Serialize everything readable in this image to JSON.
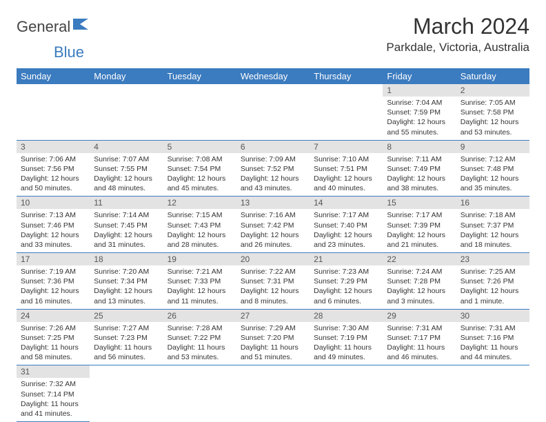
{
  "logo": {
    "text1": "General",
    "text2": "Blue"
  },
  "title": "March 2024",
  "location": "Parkdale, Victoria, Australia",
  "colors": {
    "header_bg": "#3b7bbf",
    "header_fg": "#ffffff",
    "daynum_bg": "#e3e3e3",
    "row_border": "#3b7bbf",
    "logo_accent": "#3b7bbf"
  },
  "weekdays": [
    "Sunday",
    "Monday",
    "Tuesday",
    "Wednesday",
    "Thursday",
    "Friday",
    "Saturday"
  ],
  "weeks": [
    [
      null,
      null,
      null,
      null,
      null,
      {
        "n": "1",
        "sr": "7:04 AM",
        "ss": "7:59 PM",
        "dl": "12 hours and 55 minutes."
      },
      {
        "n": "2",
        "sr": "7:05 AM",
        "ss": "7:58 PM",
        "dl": "12 hours and 53 minutes."
      }
    ],
    [
      {
        "n": "3",
        "sr": "7:06 AM",
        "ss": "7:56 PM",
        "dl": "12 hours and 50 minutes."
      },
      {
        "n": "4",
        "sr": "7:07 AM",
        "ss": "7:55 PM",
        "dl": "12 hours and 48 minutes."
      },
      {
        "n": "5",
        "sr": "7:08 AM",
        "ss": "7:54 PM",
        "dl": "12 hours and 45 minutes."
      },
      {
        "n": "6",
        "sr": "7:09 AM",
        "ss": "7:52 PM",
        "dl": "12 hours and 43 minutes."
      },
      {
        "n": "7",
        "sr": "7:10 AM",
        "ss": "7:51 PM",
        "dl": "12 hours and 40 minutes."
      },
      {
        "n": "8",
        "sr": "7:11 AM",
        "ss": "7:49 PM",
        "dl": "12 hours and 38 minutes."
      },
      {
        "n": "9",
        "sr": "7:12 AM",
        "ss": "7:48 PM",
        "dl": "12 hours and 35 minutes."
      }
    ],
    [
      {
        "n": "10",
        "sr": "7:13 AM",
        "ss": "7:46 PM",
        "dl": "12 hours and 33 minutes."
      },
      {
        "n": "11",
        "sr": "7:14 AM",
        "ss": "7:45 PM",
        "dl": "12 hours and 31 minutes."
      },
      {
        "n": "12",
        "sr": "7:15 AM",
        "ss": "7:43 PM",
        "dl": "12 hours and 28 minutes."
      },
      {
        "n": "13",
        "sr": "7:16 AM",
        "ss": "7:42 PM",
        "dl": "12 hours and 26 minutes."
      },
      {
        "n": "14",
        "sr": "7:17 AM",
        "ss": "7:40 PM",
        "dl": "12 hours and 23 minutes."
      },
      {
        "n": "15",
        "sr": "7:17 AM",
        "ss": "7:39 PM",
        "dl": "12 hours and 21 minutes."
      },
      {
        "n": "16",
        "sr": "7:18 AM",
        "ss": "7:37 PM",
        "dl": "12 hours and 18 minutes."
      }
    ],
    [
      {
        "n": "17",
        "sr": "7:19 AM",
        "ss": "7:36 PM",
        "dl": "12 hours and 16 minutes."
      },
      {
        "n": "18",
        "sr": "7:20 AM",
        "ss": "7:34 PM",
        "dl": "12 hours and 13 minutes."
      },
      {
        "n": "19",
        "sr": "7:21 AM",
        "ss": "7:33 PM",
        "dl": "12 hours and 11 minutes."
      },
      {
        "n": "20",
        "sr": "7:22 AM",
        "ss": "7:31 PM",
        "dl": "12 hours and 8 minutes."
      },
      {
        "n": "21",
        "sr": "7:23 AM",
        "ss": "7:29 PM",
        "dl": "12 hours and 6 minutes."
      },
      {
        "n": "22",
        "sr": "7:24 AM",
        "ss": "7:28 PM",
        "dl": "12 hours and 3 minutes."
      },
      {
        "n": "23",
        "sr": "7:25 AM",
        "ss": "7:26 PM",
        "dl": "12 hours and 1 minute."
      }
    ],
    [
      {
        "n": "24",
        "sr": "7:26 AM",
        "ss": "7:25 PM",
        "dl": "11 hours and 58 minutes."
      },
      {
        "n": "25",
        "sr": "7:27 AM",
        "ss": "7:23 PM",
        "dl": "11 hours and 56 minutes."
      },
      {
        "n": "26",
        "sr": "7:28 AM",
        "ss": "7:22 PM",
        "dl": "11 hours and 53 minutes."
      },
      {
        "n": "27",
        "sr": "7:29 AM",
        "ss": "7:20 PM",
        "dl": "11 hours and 51 minutes."
      },
      {
        "n": "28",
        "sr": "7:30 AM",
        "ss": "7:19 PM",
        "dl": "11 hours and 49 minutes."
      },
      {
        "n": "29",
        "sr": "7:31 AM",
        "ss": "7:17 PM",
        "dl": "11 hours and 46 minutes."
      },
      {
        "n": "30",
        "sr": "7:31 AM",
        "ss": "7:16 PM",
        "dl": "11 hours and 44 minutes."
      }
    ],
    [
      {
        "n": "31",
        "sr": "7:32 AM",
        "ss": "7:14 PM",
        "dl": "11 hours and 41 minutes."
      },
      null,
      null,
      null,
      null,
      null,
      null
    ]
  ],
  "labels": {
    "sunrise": "Sunrise:",
    "sunset": "Sunset:",
    "daylight": "Daylight:"
  }
}
